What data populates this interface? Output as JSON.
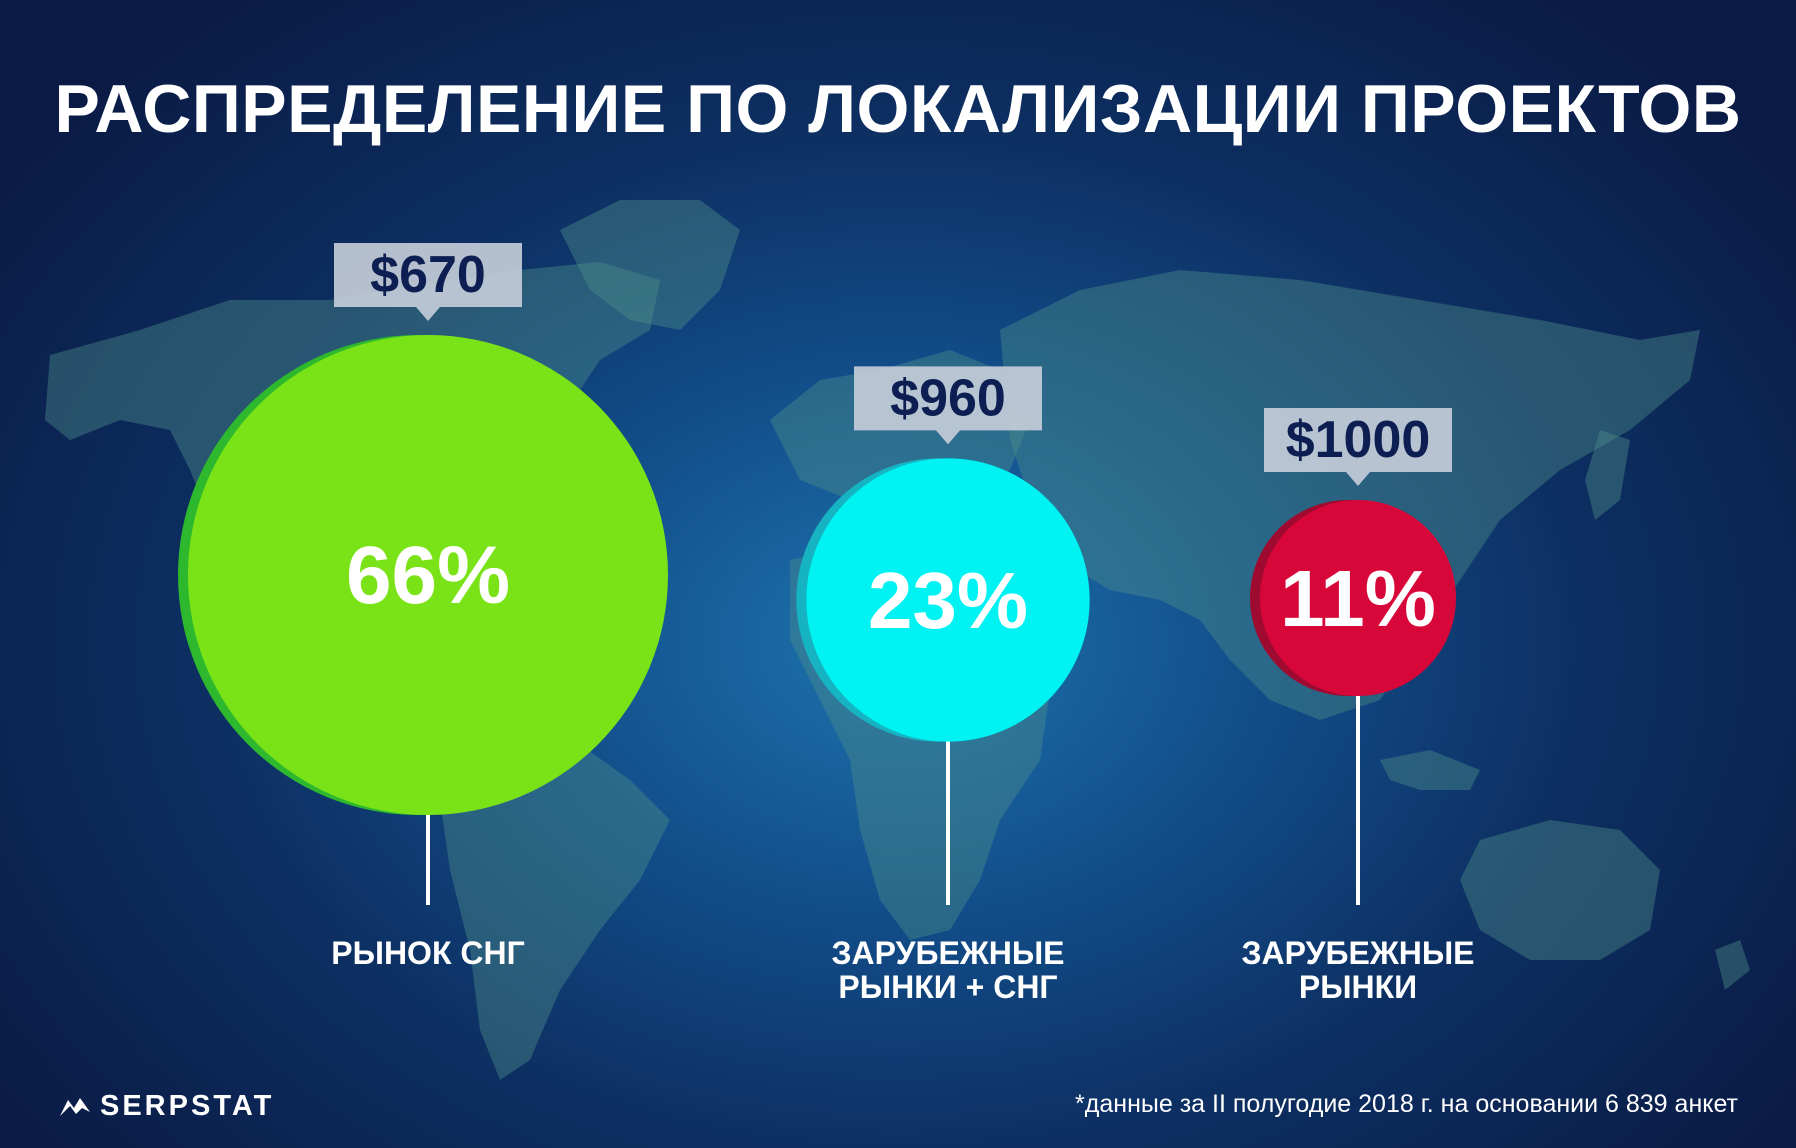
{
  "title": "РАСПРЕДЕЛЕНИЕ ПО ЛОКАЛИЗАЦИИ ПРОЕКТОВ",
  "chart_data": {
    "type": "bubble",
    "title": "РАСПРЕДЕЛЕНИЕ ПО ЛОКАЛИЗАЦИИ ПРОЕКТОВ",
    "items": [
      {
        "label_lines": [
          "РЫНОК СНГ"
        ],
        "share_percent": 66,
        "share_label": "66%",
        "price_label": "$670",
        "color": "#7ae318",
        "shadow_color": "#2eb82e"
      },
      {
        "label_lines": [
          "ЗАРУБЕЖНЫЕ",
          "РЫНКИ + СНГ"
        ],
        "share_percent": 23,
        "share_label": "23%",
        "price_label": "$960",
        "color": "#00f2f2",
        "shadow_color": "#16b3c2"
      },
      {
        "label_lines": [
          "ЗАРУБЕЖНЫЕ",
          "РЫНКИ"
        ],
        "share_percent": 11,
        "share_label": "11%",
        "price_label": "$1000",
        "color": "#d8073a",
        "shadow_color": "#9e0a30"
      }
    ]
  },
  "colors": {
    "price_box": "#c3ccd8",
    "price_text": "#0d1f52",
    "map_land": "#4f8f8a"
  },
  "logo": {
    "text": "SERPSTAT",
    "icon": "serpstat-logo-icon"
  },
  "footnote": "*данные за II полугодие 2018 г. на основании 6 839 анкет"
}
